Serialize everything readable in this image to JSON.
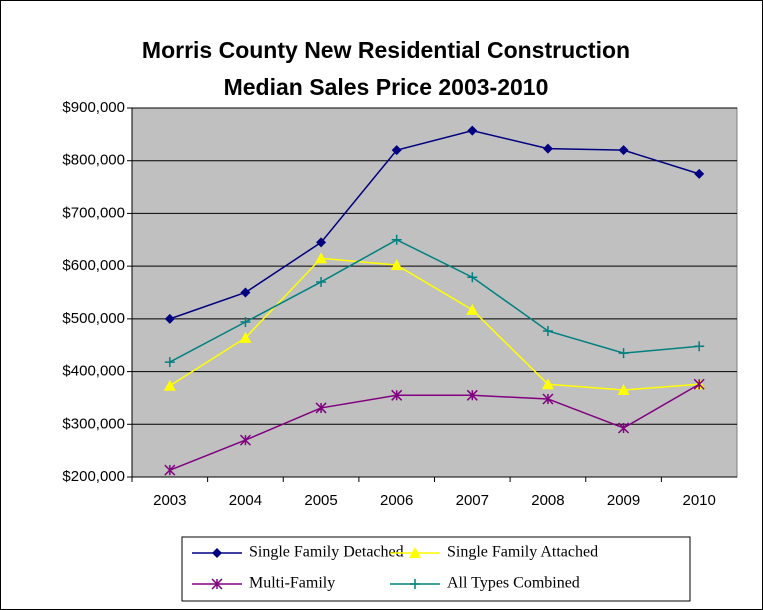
{
  "chart_data": {
    "type": "line",
    "title": [
      "Morris County New Residential Construction",
      "Median Sales Price  2003-2010"
    ],
    "categories": [
      "2003",
      "2004",
      "2005",
      "2006",
      "2007",
      "2008",
      "2009",
      "2010"
    ],
    "series": [
      {
        "name": "Single Family Detached",
        "color": "#000080",
        "marker": "diamond",
        "values": [
          500000,
          550000,
          645000,
          820000,
          857000,
          823000,
          820000,
          775000
        ]
      },
      {
        "name": "Single Family Attached",
        "color": "#ffff00",
        "marker": "triangle",
        "values": [
          373000,
          464000,
          615000,
          602000,
          517000,
          376000,
          365000,
          376000
        ]
      },
      {
        "name": "Multi-Family",
        "color": "#800080",
        "marker": "asterisk",
        "values": [
          213000,
          270000,
          331000,
          355000,
          355000,
          348000,
          293000,
          376000
        ]
      },
      {
        "name": "All Types Combined",
        "color": "#008080",
        "marker": "plus",
        "values": [
          418000,
          494000,
          570000,
          650000,
          579000,
          477000,
          435000,
          448000
        ]
      }
    ],
    "ylim": [
      200000,
      900000
    ],
    "yticks": [
      {
        "value": 200000,
        "label": "$200,000"
      },
      {
        "value": 300000,
        "label": "$300,000"
      },
      {
        "value": 400000,
        "label": "$400,000"
      },
      {
        "value": 500000,
        "label": "$500,000"
      },
      {
        "value": 600000,
        "label": "$600,000"
      },
      {
        "value": 700000,
        "label": "$700,000"
      },
      {
        "value": 800000,
        "label": "$800,000"
      },
      {
        "value": 900000,
        "label": "$900,000"
      }
    ],
    "grid": true,
    "legend": "bottom",
    "plot_background": "#c0c0c0"
  }
}
